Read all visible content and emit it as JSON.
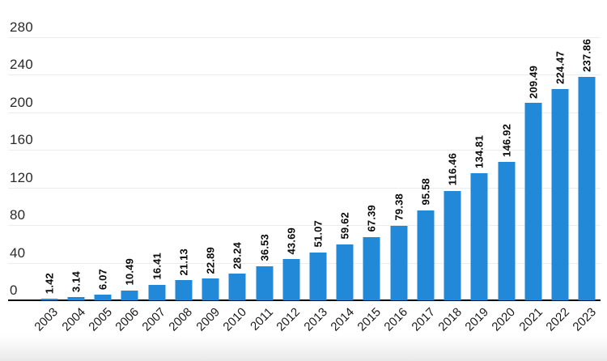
{
  "chart_data": {
    "type": "bar",
    "title": "",
    "xlabel": "",
    "ylabel": "",
    "categories": [
      "2003",
      "2004",
      "2005",
      "2006",
      "2007",
      "2008",
      "2009",
      "2010",
      "2011",
      "2012",
      "2013",
      "2014",
      "2015",
      "2016",
      "2017",
      "2018",
      "2019",
      "2020",
      "2021",
      "2022",
      "2023"
    ],
    "values": [
      1.42,
      3.14,
      6.07,
      10.49,
      16.41,
      21.13,
      22.89,
      28.24,
      36.53,
      43.69,
      51.07,
      59.62,
      67.39,
      79.38,
      95.58,
      116.46,
      134.81,
      146.92,
      209.49,
      224.47,
      237.86
    ],
    "value_labels": [
      "1.42",
      "3.14",
      "6.07",
      "10.49",
      "16.41",
      "21.13",
      "22.89",
      "28.24",
      "36.53",
      "43.69",
      "51.07",
      "59.62",
      "67.39",
      "79.38",
      "95.58",
      "116.46",
      "134.81",
      "146.92",
      "209.49",
      "224.47",
      "237.86"
    ],
    "y_ticks": [
      0,
      40,
      80,
      120,
      160,
      200,
      240,
      280
    ],
    "ylim": [
      0,
      280
    ],
    "grid": true,
    "legend": false,
    "bar_color": "#2189d8",
    "gridline_color": "#ececec",
    "axis_line_color": "#0a0a0a",
    "label_color": "#0a0a0a"
  }
}
